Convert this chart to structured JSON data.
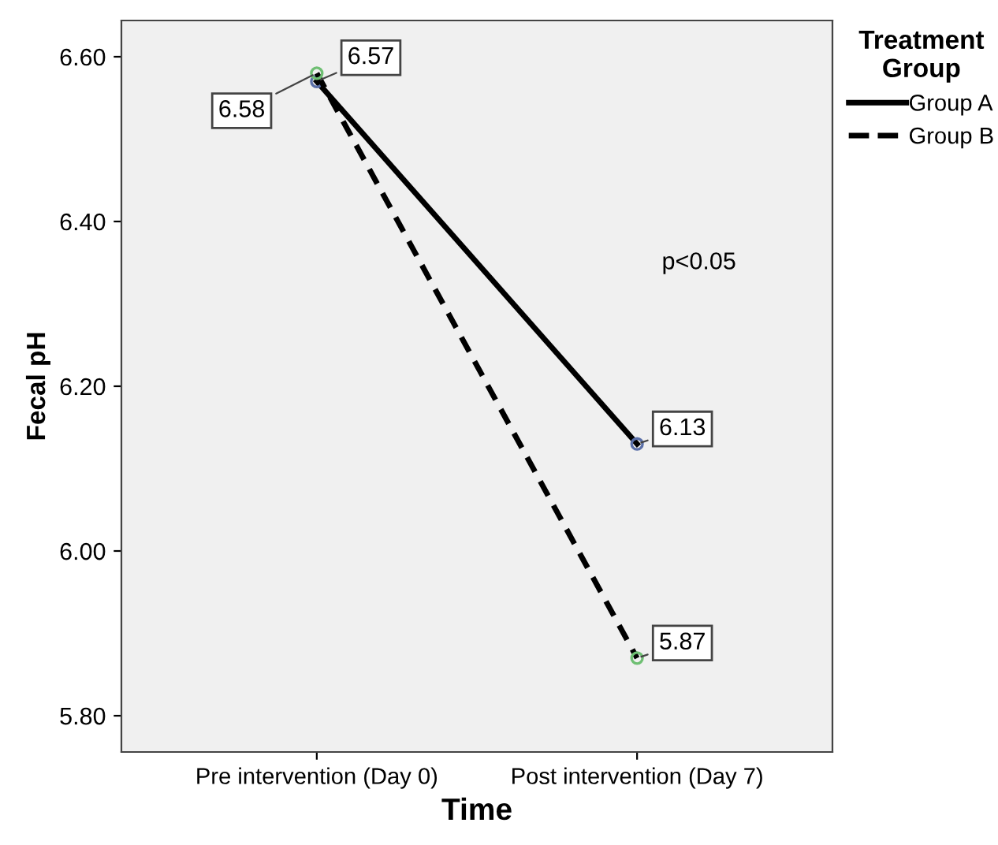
{
  "chart_data": {
    "type": "line",
    "xlabel": "Time",
    "ylabel": "Fecal pH",
    "legend_title": "Treatment\nGroup",
    "categories": [
      "Pre intervention (Day 0)",
      "Post intervention (Day 7)"
    ],
    "series": [
      {
        "name": "Group A",
        "color": "#000000",
        "values": [
          6.57,
          6.13
        ],
        "line_style": "solid"
      },
      {
        "name": "Group B",
        "color": "#000000",
        "values": [
          6.58,
          5.87
        ],
        "line_style": "dashed"
      }
    ],
    "ylim": [
      5.756,
      6.644
    ],
    "yticks": [
      {
        "value": 5.8,
        "label": "5.80"
      },
      {
        "value": 6.0,
        "label": "6.00"
      },
      {
        "value": 6.2,
        "label": "6.20"
      },
      {
        "value": 6.4,
        "label": "6.40"
      },
      {
        "value": 6.6,
        "label": "6.60"
      }
    ],
    "data_labels": true,
    "marker": "circle",
    "grid": false,
    "legend": "right",
    "annotations": [
      "p<0.05"
    ]
  }
}
